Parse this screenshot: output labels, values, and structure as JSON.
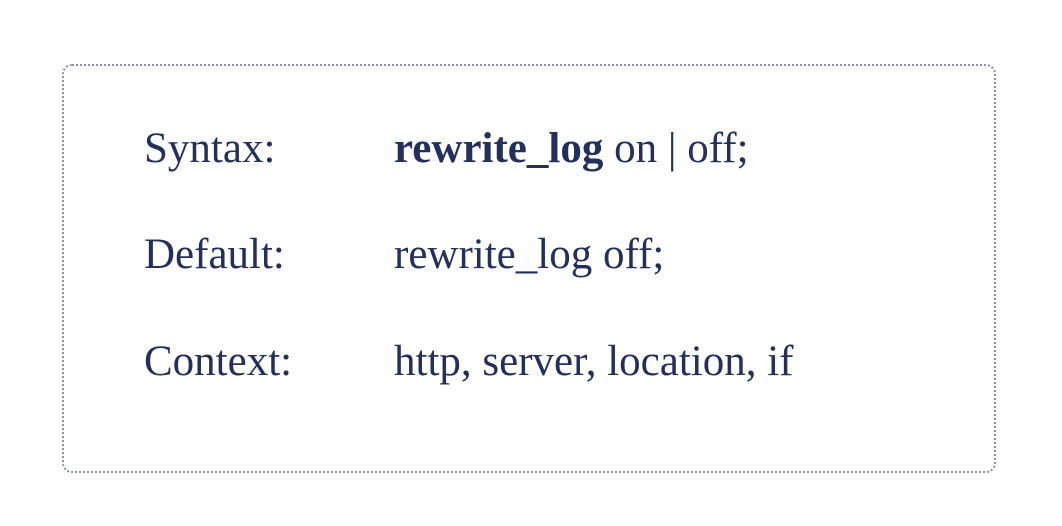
{
  "directive": {
    "syntax": {
      "label": "Syntax:",
      "name": "rewrite_log",
      "args": " on | off;"
    },
    "default": {
      "label": "Default:",
      "value": "rewrite_log off;"
    },
    "context": {
      "label": "Context:",
      "value": "http, server, location, if"
    }
  },
  "colors": {
    "text": "#23305c",
    "border": "#8a8fb0"
  }
}
